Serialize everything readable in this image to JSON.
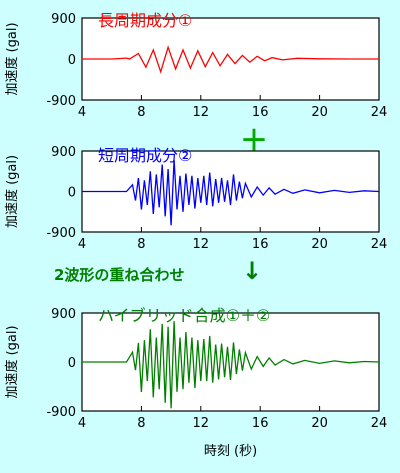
{
  "chart_data": [
    {
      "type": "line",
      "title": "長周期成分①",
      "title_color": "#ff0000",
      "line_color": "#ff0000",
      "xlabel": "",
      "ylabel": "加速度 (gal)",
      "xlim": [
        4,
        24
      ],
      "ylim": [
        -900,
        900
      ],
      "xticks": [
        "4",
        "8",
        "12",
        "16",
        "20",
        "24"
      ],
      "yticks": [
        "900",
        "0",
        "-900"
      ],
      "series": [
        {
          "x": [
            4.0,
            6.0,
            7.0,
            7.2,
            7.8,
            8.3,
            8.8,
            9.3,
            9.8,
            10.3,
            10.8,
            11.3,
            11.8,
            12.3,
            12.8,
            13.3,
            13.8,
            14.3,
            14.8,
            15.3,
            15.8,
            16.3,
            16.8,
            17.5,
            18.5,
            20.0,
            22.0,
            24.0
          ],
          "y": [
            0,
            0,
            20,
            0,
            120,
            -180,
            200,
            -280,
            260,
            -220,
            200,
            -200,
            180,
            -170,
            140,
            -150,
            100,
            -100,
            80,
            -70,
            60,
            -40,
            30,
            -20,
            15,
            5,
            0,
            0
          ]
        }
      ]
    },
    {
      "type": "line",
      "title": "短周期成分②",
      "title_color": "#0000ff",
      "line_color": "#0000ff",
      "xlabel": "",
      "ylabel": "加速度 (gal)",
      "xlim": [
        4,
        24
      ],
      "ylim": [
        -900,
        900
      ],
      "xticks": [
        "4",
        "8",
        "12",
        "16",
        "20",
        "24"
      ],
      "yticks": [
        "900",
        "0",
        "-900"
      ],
      "series": [
        {
          "x": [
            4.0,
            7.0,
            7.4,
            7.6,
            7.8,
            8.0,
            8.2,
            8.4,
            8.6,
            8.8,
            9.0,
            9.2,
            9.4,
            9.6,
            9.8,
            10.0,
            10.2,
            10.4,
            10.6,
            10.8,
            11.0,
            11.2,
            11.4,
            11.6,
            11.8,
            12.0,
            12.2,
            12.4,
            12.6,
            12.8,
            13.0,
            13.2,
            13.4,
            13.6,
            13.8,
            14.0,
            14.2,
            14.4,
            14.6,
            14.8,
            15.0,
            15.4,
            15.8,
            16.2,
            16.6,
            17.0,
            17.6,
            18.2,
            19.0,
            20.0,
            21.0,
            22.0,
            23.0,
            24.0
          ],
          "y": [
            0,
            0,
            150,
            -200,
            300,
            -400,
            250,
            -300,
            450,
            -500,
            380,
            -350,
            600,
            -550,
            500,
            -750,
            700,
            -400,
            350,
            -450,
            400,
            -300,
            350,
            -380,
            300,
            -250,
            350,
            -300,
            420,
            -330,
            280,
            -250,
            300,
            -230,
            250,
            -300,
            380,
            -200,
            220,
            -150,
            180,
            -120,
            100,
            -80,
            80,
            -60,
            50,
            -40,
            35,
            -30,
            25,
            -20,
            15,
            0
          ]
        }
      ]
    },
    {
      "type": "line",
      "title": "ハイブリッド合成①＋②",
      "title_color": "#008000",
      "line_color": "#008000",
      "xlabel": "時刻 (秒)",
      "ylabel": "加速度 (gal)",
      "xlim": [
        4,
        24
      ],
      "ylim": [
        -900,
        900
      ],
      "xticks": [
        "4",
        "8",
        "12",
        "16",
        "20",
        "24"
      ],
      "yticks": [
        "900",
        "0",
        "-900"
      ],
      "series": [
        {
          "x": [
            4.0,
            7.0,
            7.4,
            7.6,
            7.8,
            8.0,
            8.2,
            8.4,
            8.6,
            8.8,
            9.0,
            9.2,
            9.4,
            9.6,
            9.8,
            10.0,
            10.2,
            10.4,
            10.6,
            10.8,
            11.0,
            11.2,
            11.4,
            11.6,
            11.8,
            12.0,
            12.2,
            12.4,
            12.6,
            12.8,
            13.0,
            13.2,
            13.4,
            13.6,
            13.8,
            14.0,
            14.2,
            14.4,
            14.6,
            14.8,
            15.0,
            15.4,
            15.8,
            16.2,
            16.6,
            17.0,
            17.6,
            18.2,
            19.0,
            20.0,
            21.0,
            22.0,
            23.0,
            24.0
          ],
          "y": [
            0,
            0,
            180,
            -150,
            350,
            -550,
            400,
            -350,
            600,
            -650,
            450,
            -500,
            700,
            -750,
            650,
            -850,
            750,
            -550,
            450,
            -500,
            550,
            -380,
            450,
            -480,
            400,
            -350,
            420,
            -350,
            480,
            -380,
            320,
            -320,
            340,
            -280,
            280,
            -330,
            360,
            -220,
            230,
            -160,
            170,
            -130,
            100,
            -80,
            75,
            -55,
            45,
            -35,
            30,
            -25,
            20,
            -15,
            10,
            0
          ]
        }
      ]
    }
  ],
  "connector": {
    "label": "2波形の重ね合わせ",
    "arrow": "↓",
    "plus": "＋"
  }
}
